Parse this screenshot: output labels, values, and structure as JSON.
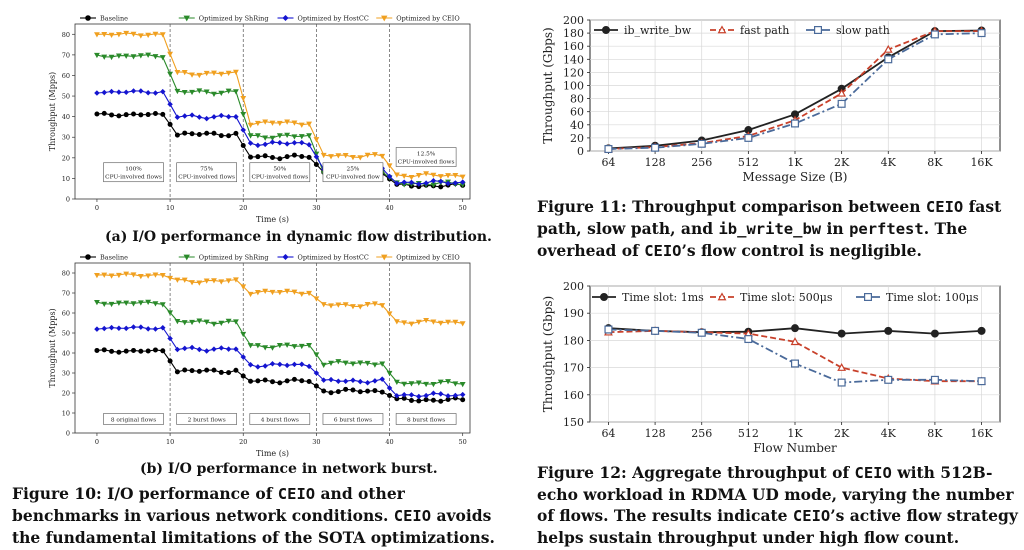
{
  "chart_data": [
    {
      "id": "a",
      "type": "line",
      "xlabel": "Time (s)",
      "ylabel": "Throughput (Mpps)",
      "xlim": [
        -3,
        51
      ],
      "ylim": [
        0,
        85
      ],
      "xticks": [
        "0",
        "10",
        "20",
        "30",
        "40",
        "50"
      ],
      "yticks": [
        "0",
        "10",
        "20",
        "30",
        "40",
        "50",
        "60",
        "70",
        "80"
      ],
      "legend_placement": "top",
      "phase_markers": [
        10,
        20,
        30,
        40
      ],
      "phase_labels": [
        {
          "x": 5,
          "lines": [
            "100%",
            "CPU-involved flows"
          ]
        },
        {
          "x": 15,
          "lines": [
            "75%",
            "CPU-involved flows"
          ]
        },
        {
          "x": 25,
          "lines": [
            "50%",
            "CPU-involved flows"
          ]
        },
        {
          "x": 35,
          "lines": [
            "25%",
            "CPU-involved flow"
          ]
        },
        {
          "x": 45,
          "lines": [
            "12.5%",
            "CPU-involved flows"
          ]
        }
      ],
      "series": [
        {
          "name": "Baseline",
          "color": "#000000",
          "marker": "circle",
          "levels": [
            41,
            31.5,
            20.5,
            13,
            6.5
          ]
        },
        {
          "name": "Optimized by ShRing",
          "color": "#2a8a2a",
          "marker": "triangle-down",
          "levels": [
            69.5,
            52,
            30.5,
            13.5,
            7.5
          ]
        },
        {
          "name": "Optimized by HostCC",
          "color": "#1515d0",
          "marker": "diamond",
          "levels": [
            52,
            40,
            27,
            14,
            8
          ]
        },
        {
          "name": "Optimized by CEIO",
          "color": "#f0a020",
          "marker": "triangle-down",
          "levels": [
            80,
            61,
            37,
            21,
            11.5
          ]
        }
      ]
    },
    {
      "id": "b",
      "type": "line",
      "xlabel": "Time (s)",
      "ylabel": "Throughput (Mpps)",
      "xlim": [
        -3,
        51
      ],
      "ylim": [
        0,
        85
      ],
      "xticks": [
        "0",
        "10",
        "20",
        "30",
        "40",
        "50"
      ],
      "yticks": [
        "0",
        "10",
        "20",
        "30",
        "40",
        "50",
        "60",
        "70",
        "80"
      ],
      "legend_placement": "top",
      "phase_markers": [
        10,
        20,
        30,
        40
      ],
      "phase_labels": [
        {
          "x": 5,
          "lines": [
            "8 original flows"
          ]
        },
        {
          "x": 15,
          "lines": [
            "2 burst flows"
          ]
        },
        {
          "x": 25,
          "lines": [
            "4 burst flows"
          ]
        },
        {
          "x": 35,
          "lines": [
            "6 burst flows"
          ]
        },
        {
          "x": 45,
          "lines": [
            "8 burst flows"
          ]
        }
      ],
      "series": [
        {
          "name": "Baseline",
          "color": "#000000",
          "marker": "circle",
          "levels": [
            41,
            31,
            26,
            21,
            16.5
          ]
        },
        {
          "name": "Optimized by ShRing",
          "color": "#2a8a2a",
          "marker": "triangle-down",
          "levels": [
            65,
            55.5,
            43.5,
            35,
            25
          ]
        },
        {
          "name": "Optimized by HostCC",
          "color": "#1515d0",
          "marker": "diamond",
          "levels": [
            52.5,
            42,
            34,
            26,
            19
          ]
        },
        {
          "name": "Optimized by CEIO",
          "color": "#f0a020",
          "marker": "triangle-down",
          "levels": [
            79,
            76,
            70.5,
            64,
            55.5
          ]
        }
      ]
    },
    {
      "id": "fig11",
      "type": "line",
      "xlabel": "Message Size (B)",
      "ylabel": "Throughput (Gbps)",
      "categories": [
        "64",
        "128",
        "256",
        "512",
        "1K",
        "2K",
        "4K",
        "8K",
        "16K"
      ],
      "ylim": [
        0,
        200
      ],
      "yticks": [
        "0",
        "20",
        "40",
        "60",
        "80",
        "100",
        "120",
        "140",
        "160",
        "180",
        "200"
      ],
      "legend_placement": "top-left",
      "series": [
        {
          "name": "ib_write_bw",
          "color": "#222222",
          "marker": "circle",
          "dash": "solid",
          "values": [
            4,
            8,
            16,
            32,
            56,
            95,
            143,
            183,
            184
          ]
        },
        {
          "name": "fast path",
          "color": "#c8402a",
          "marker": "triangle-up",
          "dash": "dashed",
          "values": [
            3,
            6,
            12,
            23,
            47,
            88,
            155,
            183,
            183
          ]
        },
        {
          "name": "slow path",
          "color": "#4a6a9a",
          "marker": "square",
          "dash": "dashdot",
          "values": [
            3,
            5,
            11,
            20,
            42,
            72,
            140,
            178,
            180
          ]
        }
      ]
    },
    {
      "id": "fig12",
      "type": "line",
      "xlabel": "Flow Number",
      "ylabel": "Throughput (Gbps)",
      "categories": [
        "64",
        "128",
        "256",
        "512",
        "1K",
        "2K",
        "4K",
        "8K",
        "16K"
      ],
      "ylim": [
        150,
        200
      ],
      "yticks": [
        "150",
        "160",
        "170",
        "180",
        "190",
        "200"
      ],
      "legend_placement": "top",
      "series": [
        {
          "name": "Time slot: 1ms",
          "color": "#222222",
          "marker": "circle",
          "dash": "solid",
          "values": [
            184.5,
            183.5,
            183,
            183.2,
            184.5,
            182.5,
            183.5,
            182.5,
            183.5
          ]
        },
        {
          "name": "Time slot: 500μs",
          "color": "#c8402a",
          "marker": "triangle-up",
          "dash": "dashed",
          "values": [
            183,
            183.5,
            183,
            182.5,
            179.5,
            170,
            166,
            165,
            165
          ]
        },
        {
          "name": "Time slot: 100μs",
          "color": "#4a6a9a",
          "marker": "square",
          "dash": "dashdot",
          "values": [
            184,
            183.5,
            182.8,
            180.5,
            171.5,
            164.5,
            165.5,
            165.5,
            165
          ]
        }
      ]
    }
  ],
  "captions": {
    "sub_a": "(a) I/O performance in dynamic flow distribution.",
    "sub_b": "(b) I/O performance in network burst.",
    "fig10": {
      "p1": "Figure 10: I/O performance of ",
      "c1": "CEIO",
      "p2": " and other benchmarks in various network conditions. ",
      "c2": "CEIO",
      "p3": " avoids the fundamental limitations of the SOTA optimizations."
    },
    "fig11": {
      "p1": "Figure 11: Throughput comparison between ",
      "c1": "CEIO",
      "p2": " fast path, slow path, and ",
      "c2": "ib_write_bw",
      "p3": " in ",
      "c3": "perftest",
      "p4": ". The overhead of ",
      "c4": "CEIO",
      "p5": "’s flow control is negligible."
    },
    "fig12": {
      "p1": "Figure 12: Aggregate throughput of ",
      "c1": "CEIO",
      "p2": " with 512B-echo workload in RDMA UD mode, varying the number of flows. The results indicate ",
      "c2": "CEIO",
      "p3": "’s active flow strategy helps sustain throughput under high flow count."
    }
  }
}
